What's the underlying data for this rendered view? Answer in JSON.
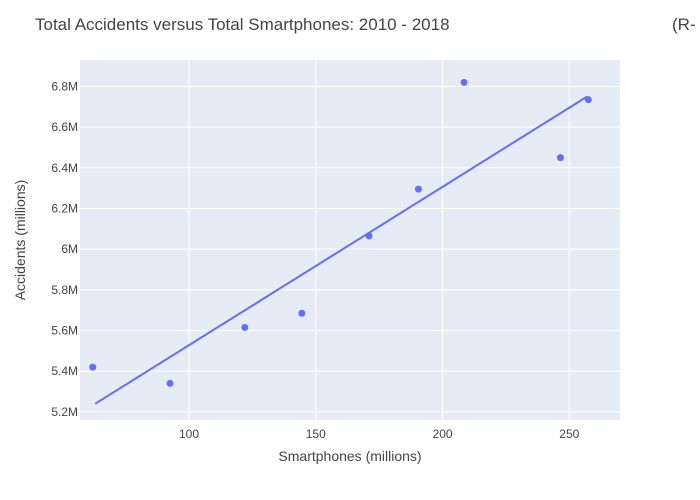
{
  "chart_data": {
    "type": "scatter",
    "title": "Total Accidents versus Total Smartphones: 2010 - 2018",
    "subtitle": "(R-",
    "xlabel": "Smartphones (millions)",
    "ylabel": "Accidents (millions)",
    "xlim": [
      57,
      270
    ],
    "ylim": [
      5.16,
      6.93
    ],
    "xticks": [
      100,
      150,
      200,
      250
    ],
    "xtick_labels": [
      "100",
      "150",
      "200",
      "250"
    ],
    "yticks": [
      5.2,
      5.4,
      5.6,
      5.8,
      6.0,
      6.2,
      6.4,
      6.6,
      6.8
    ],
    "ytick_labels": [
      "5.2M",
      "5.4M",
      "5.6M",
      "5.8M",
      "6M",
      "6.2M",
      "6.4M",
      "6.6M",
      "6.8M"
    ],
    "grid": true,
    "colors": {
      "series": "#636efa",
      "plot_bg": "#e5ecf6",
      "grid": "#ffffff",
      "text": "#444444"
    },
    "series": [
      {
        "mode": "markers",
        "points": [
          {
            "x": 62,
            "y": 5.42
          },
          {
            "x": 92.5,
            "y": 5.34
          },
          {
            "x": 122,
            "y": 5.615
          },
          {
            "x": 144.5,
            "y": 5.685
          },
          {
            "x": 171,
            "y": 6.065
          },
          {
            "x": 190.5,
            "y": 6.295
          },
          {
            "x": 208.5,
            "y": 6.82
          },
          {
            "x": 246.5,
            "y": 6.45
          },
          {
            "x": 257.5,
            "y": 6.735
          }
        ]
      },
      {
        "mode": "lines",
        "points": [
          {
            "x": 63,
            "y": 5.24
          },
          {
            "x": 257,
            "y": 6.75
          }
        ]
      }
    ]
  }
}
